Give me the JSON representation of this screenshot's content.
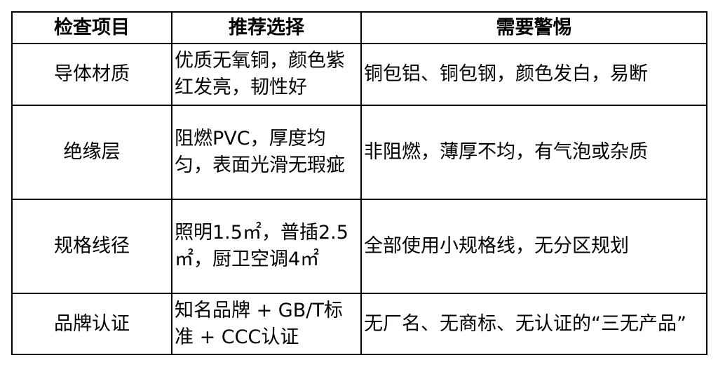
{
  "table": {
    "header": [
      "检查项目",
      "推荐选择",
      "需要警惕"
    ],
    "rows": [
      [
        "导体材质",
        "优质无氧铜，颜色紫红发亮，韧性好",
        "铜包铝、铜包钢，颜色发白，易断"
      ],
      [
        "绝缘层",
        "阻燃PVC，厚度均匀，表面光滑无瑕疵",
        "非阻燃，薄厚不均，有气泡或杂质"
      ],
      [
        "规格线径",
        "照明1.5㎡，普插2.5㎡，厨卫空调4㎡",
        "全部使用小规格线，无分区规划"
      ],
      [
        "品牌认证",
        "知名品牌 + GB/T标准 + CCC认证",
        "无厂名、无商标、无认证的“三无产品”"
      ]
    ]
  }
}
